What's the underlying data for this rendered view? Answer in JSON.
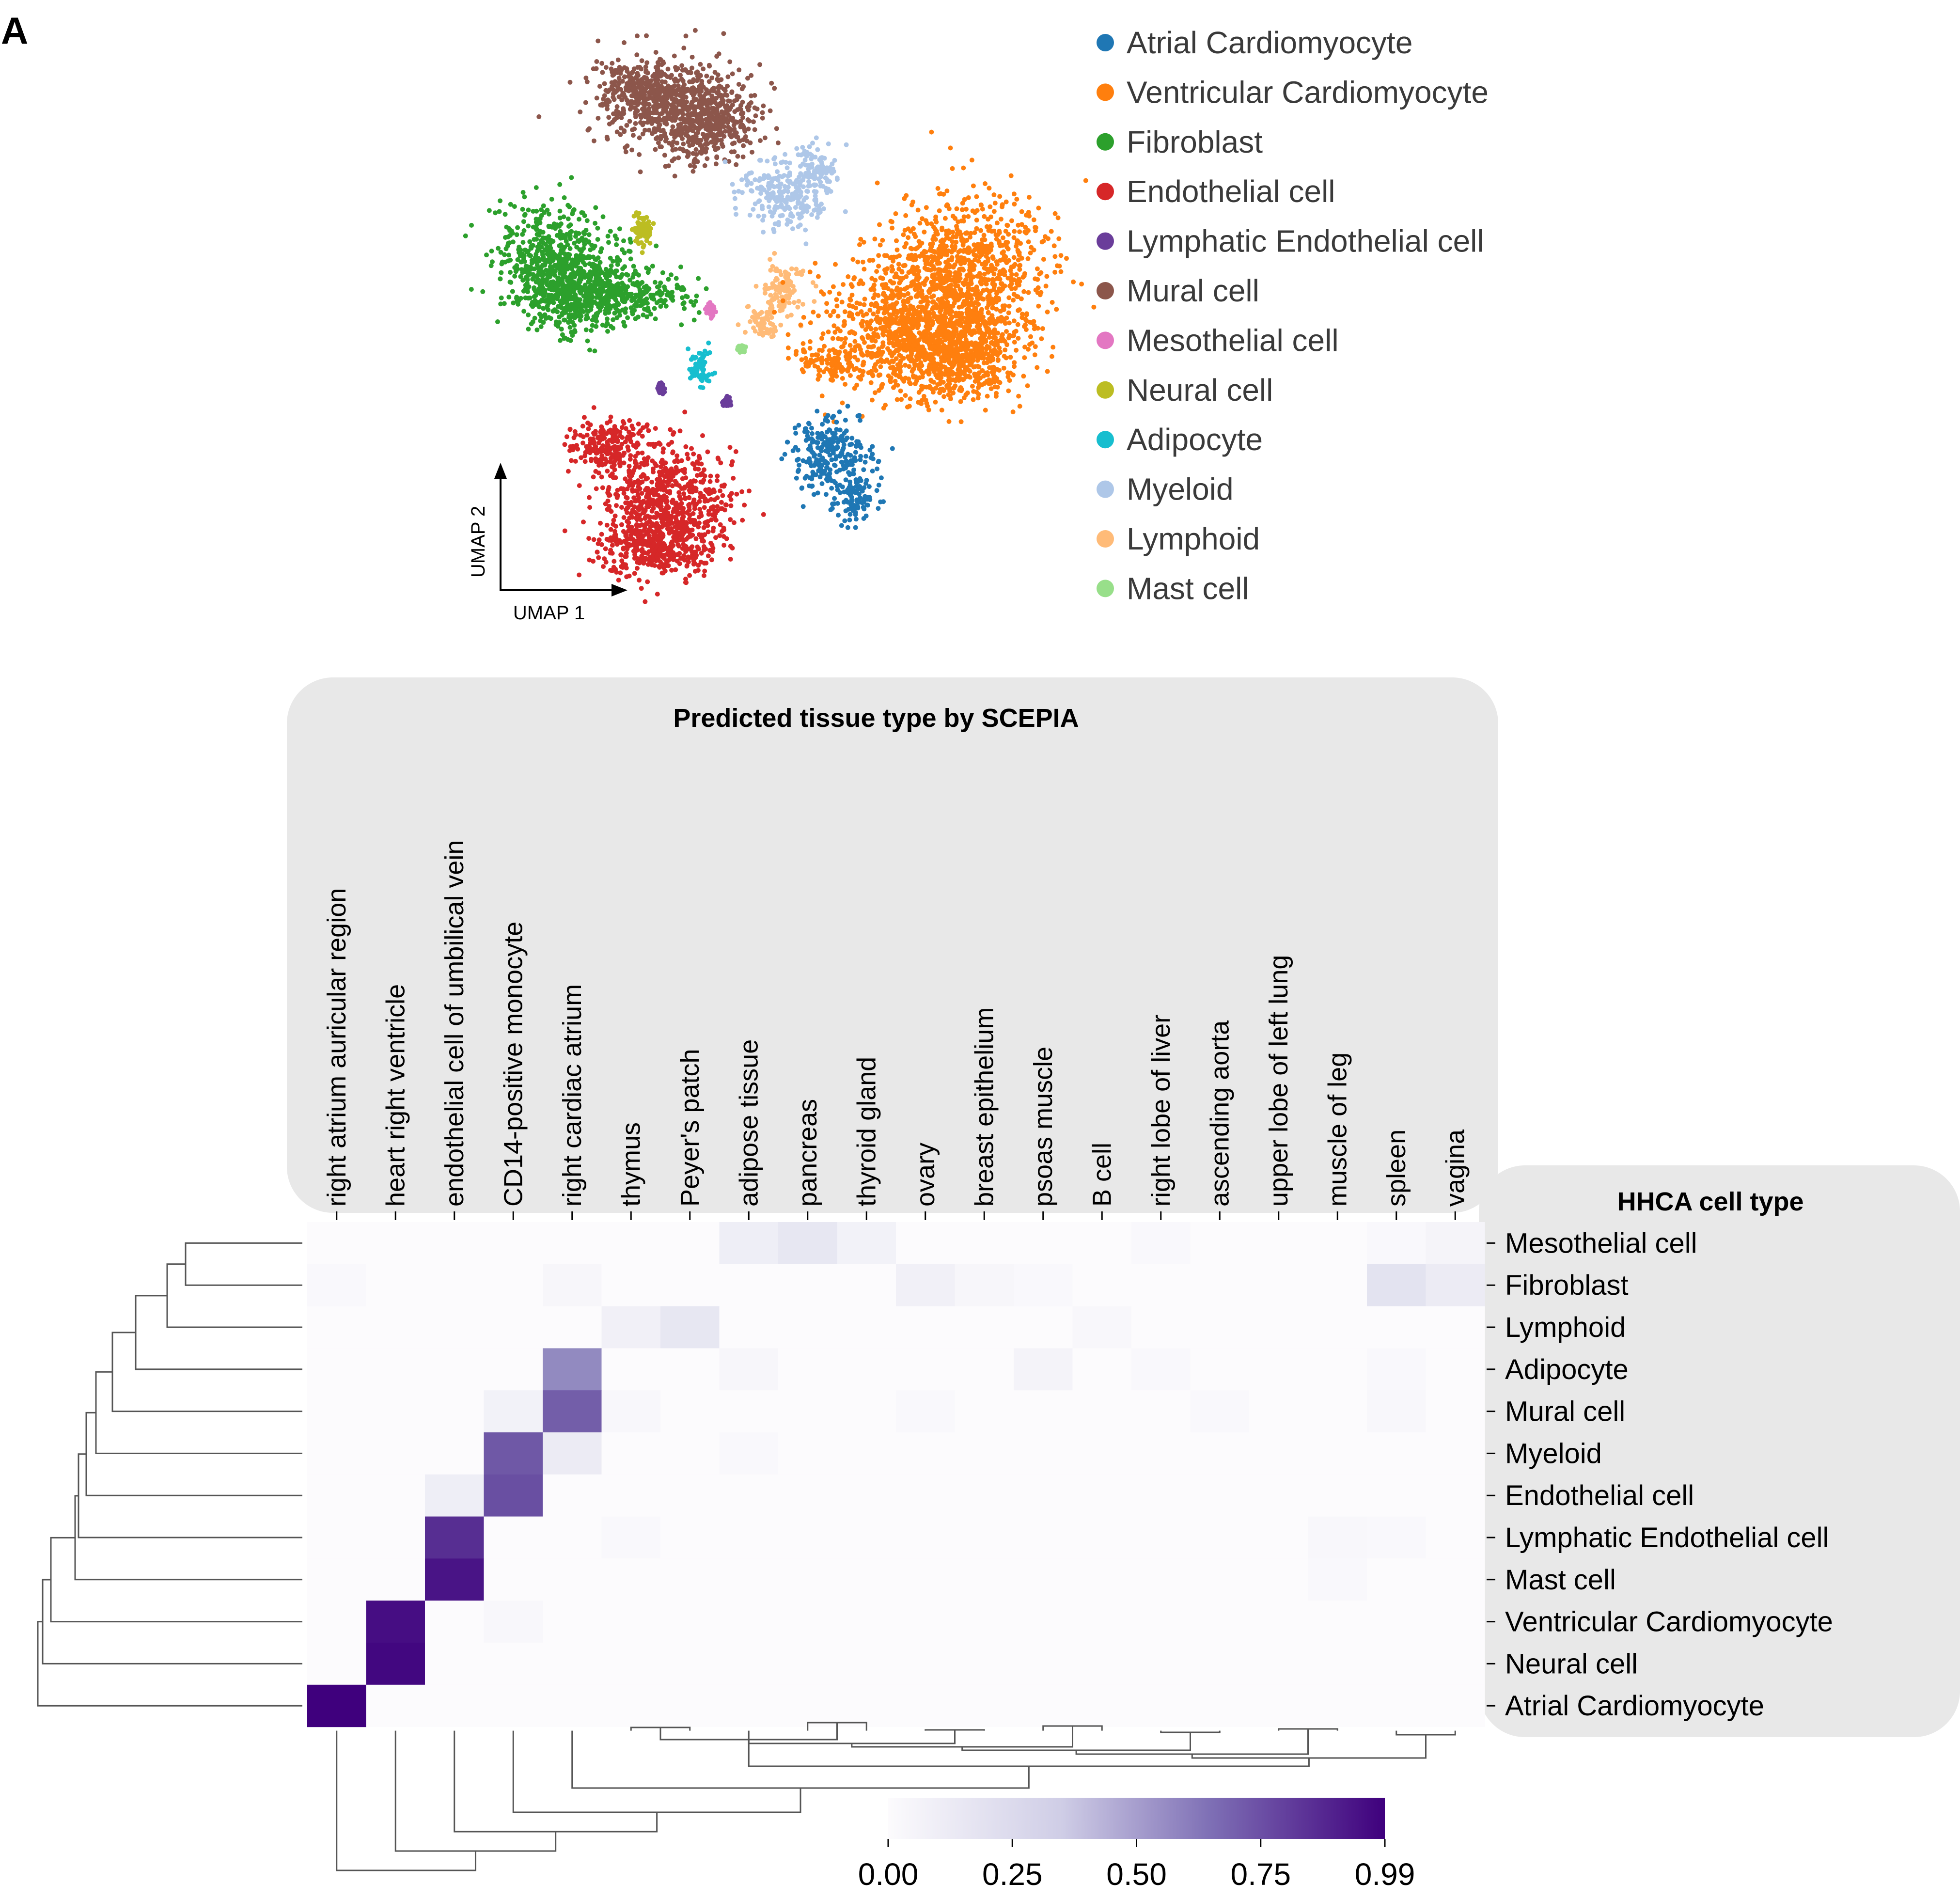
{
  "panel_label": "A",
  "umap": {
    "axis_x_label": "UMAP 1",
    "axis_y_label": "UMAP 2",
    "legend": [
      {
        "label": "Atrial Cardiomyocyte",
        "color": "#1f77b4"
      },
      {
        "label": "Ventricular Cardiomyocyte",
        "color": "#ff7f0e"
      },
      {
        "label": "Fibroblast",
        "color": "#2ca02c"
      },
      {
        "label": "Endothelial cell",
        "color": "#d62728"
      },
      {
        "label": "Lymphatic Endothelial cell",
        "color": "#6a3d9a"
      },
      {
        "label": "Mural cell",
        "color": "#8c564b"
      },
      {
        "label": "Mesothelial cell",
        "color": "#e377c2"
      },
      {
        "label": "Neural cell",
        "color": "#bcbd22"
      },
      {
        "label": "Adipocyte",
        "color": "#17becf"
      },
      {
        "label": "Myeloid",
        "color": "#aec7e8"
      },
      {
        "label": "Lymphoid",
        "color": "#ffbb78"
      },
      {
        "label": "Mast cell",
        "color": "#98df8a"
      }
    ]
  },
  "chart_data": {
    "type": "heatmap",
    "column_group_title": "Predicted tissue type by SCEPIA",
    "row_group_title": "HHCA cell type",
    "columns": [
      "right atrium auricular region",
      "heart right ventricle",
      "endothelial cell of umbilical vein",
      "CD14-positive monocyte",
      "right cardiac atrium",
      "thymus",
      "Peyer's patch",
      "adipose tissue",
      "pancreas",
      "thyroid gland",
      "ovary",
      "breast epithelium",
      "psoas muscle",
      "B cell",
      "right lobe of liver",
      "ascending aorta",
      "upper lobe of left lung",
      "muscle of leg",
      "spleen",
      "vagina"
    ],
    "rows": [
      "Mesothelial cell",
      "Fibroblast",
      "Lymphoid",
      "Adipocyte",
      "Mural cell",
      "Myeloid",
      "Endothelial cell",
      "Lymphatic Endothelial cell",
      "Mast cell",
      "Ventricular Cardiomyocyte",
      "Neural cell",
      "Atrial Cardiomyocyte"
    ],
    "values": [
      [
        0,
        0,
        0,
        0,
        0,
        0,
        0,
        0.1,
        0.15,
        0.07,
        0,
        0,
        0,
        0,
        0.02,
        0,
        0,
        0,
        0.02,
        0.05
      ],
      [
        0.02,
        0,
        0,
        0,
        0.04,
        0,
        0,
        0,
        0,
        0,
        0.08,
        0.04,
        0.02,
        0,
        0,
        0,
        0,
        0,
        0.18,
        0.12
      ],
      [
        0,
        0,
        0,
        0,
        0,
        0.08,
        0.15,
        0,
        0,
        0,
        0,
        0,
        0,
        0.03,
        0,
        0,
        0,
        0,
        0,
        0
      ],
      [
        0,
        0,
        0,
        0,
        0.55,
        0,
        0,
        0.04,
        0,
        0,
        0,
        0,
        0.06,
        0,
        0.02,
        0,
        0,
        0,
        0.02,
        0
      ],
      [
        0,
        0,
        0,
        0.07,
        0.7,
        0.03,
        0,
        0,
        0,
        0,
        0.02,
        0,
        0,
        0,
        0,
        0.02,
        0,
        0,
        0.03,
        0
      ],
      [
        0,
        0,
        0,
        0.72,
        0.12,
        0,
        0,
        0.02,
        0,
        0,
        0,
        0,
        0,
        0,
        0,
        0,
        0,
        0,
        0,
        0
      ],
      [
        0,
        0,
        0.1,
        0.75,
        0,
        0,
        0,
        0,
        0,
        0,
        0,
        0,
        0,
        0,
        0,
        0,
        0,
        0,
        0,
        0
      ],
      [
        0,
        0,
        0.85,
        0,
        0,
        0.02,
        0,
        0,
        0,
        0,
        0,
        0,
        0,
        0,
        0,
        0,
        0,
        0.03,
        0.02,
        0
      ],
      [
        0,
        0,
        0.93,
        0,
        0,
        0,
        0,
        0,
        0,
        0,
        0,
        0,
        0,
        0,
        0,
        0,
        0,
        0.02,
        0,
        0
      ],
      [
        0,
        0.95,
        0,
        0.03,
        0,
        0,
        0,
        0,
        0,
        0,
        0,
        0,
        0,
        0,
        0,
        0,
        0,
        0,
        0,
        0
      ],
      [
        0,
        0.97,
        0,
        0,
        0,
        0,
        0,
        0,
        0,
        0,
        0,
        0,
        0,
        0,
        0,
        0,
        0,
        0,
        0,
        0
      ],
      [
        0.99,
        0,
        0,
        0,
        0,
        0,
        0,
        0,
        0,
        0,
        0,
        0,
        0,
        0,
        0,
        0,
        0,
        0,
        0,
        0
      ]
    ],
    "color_range": [
      0,
      0.99
    ],
    "colormap": [
      "#fcfbfd",
      "#3f007d"
    ],
    "colorbar_ticks": [
      "0.00",
      "0.25",
      "0.50",
      "0.75",
      "0.99"
    ]
  }
}
